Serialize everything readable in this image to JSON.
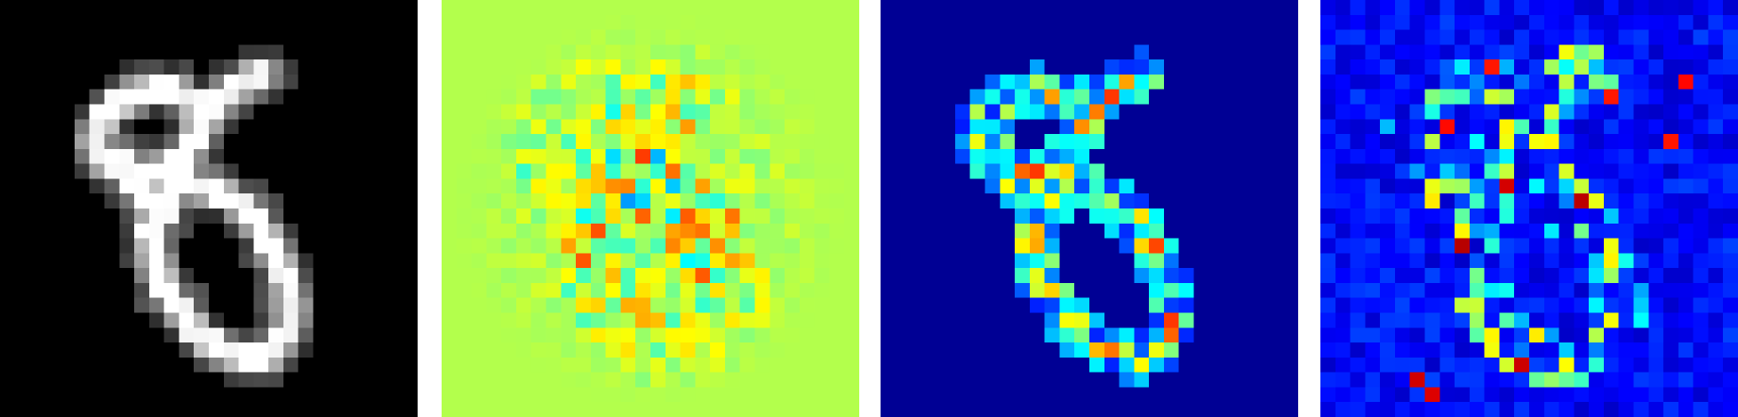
{
  "panels": [
    {
      "name": "input-digit",
      "colormap": "gray",
      "background_color": "#000000"
    },
    {
      "name": "heatmap-1",
      "colormap": "jet",
      "background_color": "#a4ff5a"
    },
    {
      "name": "heatmap-2",
      "colormap": "jet",
      "background_color": "#00007f"
    },
    {
      "name": "heatmap-3",
      "colormap": "jet",
      "background_color": "#0000c8"
    }
  ]
}
